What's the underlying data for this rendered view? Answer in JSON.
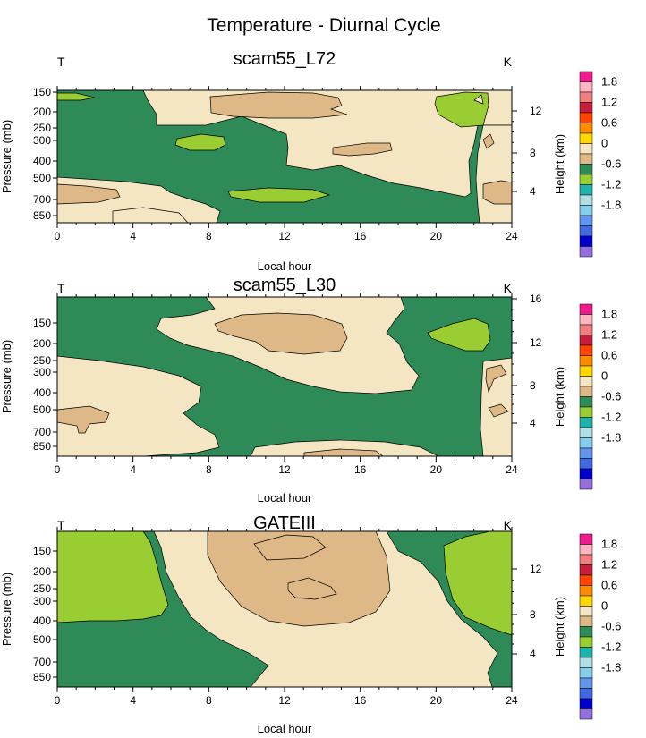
{
  "figure": {
    "title": "Temperature - Diurnal Cycle"
  },
  "colors": {
    "tan": "#deb887",
    "cream": "#f5e6c3",
    "green": "#2e8b57",
    "lightgreen": "#9acd32",
    "contour": "#000000"
  },
  "colorbar": {
    "label": "Height (km)",
    "tick_labels": [
      "1.8",
      "1.2",
      "0.6",
      "0",
      "-0.6",
      "-1.2",
      "-1.8"
    ],
    "swatches": [
      "#ee1c8c",
      "#ffb6c1",
      "#f08080",
      "#c41e3a",
      "#ff4500",
      "#ff8c00",
      "#ffd700",
      "#f5e6c3",
      "#deb887",
      "#2e8b57",
      "#9acd32",
      "#20b2aa",
      "#b0e0e6",
      "#87ceeb",
      "#6495ed",
      "#4169e1",
      "#0000cd",
      "#9370db"
    ]
  },
  "chart_data": [
    {
      "type": "heatmap",
      "title": "scam55_L72",
      "left_label": "T",
      "right_label": "K",
      "xlabel": "Local hour",
      "ylabel": "Pressure (mb)",
      "right_ylabel": "Height (km)",
      "x_ticks": [
        "0",
        "4",
        "8",
        "12",
        "16",
        "20",
        "24"
      ],
      "y_ticks": [
        "150",
        "200",
        "250",
        "300",
        "400",
        "500",
        "700",
        "850"
      ],
      "right_ticks": [
        "12",
        "8",
        "4"
      ],
      "xlim": [
        0,
        24
      ]
    },
    {
      "type": "heatmap",
      "title": "scam55_L30",
      "left_label": "T",
      "right_label": "K",
      "xlabel": "Local hour",
      "ylabel": "Pressure (mb)",
      "right_ylabel": "Height (km)",
      "x_ticks": [
        "0",
        "4",
        "8",
        "12",
        "16",
        "20",
        "24"
      ],
      "y_ticks": [
        "150",
        "200",
        "250",
        "300",
        "400",
        "500",
        "700",
        "850"
      ],
      "right_ticks": [
        "16",
        "12",
        "8",
        "4"
      ],
      "xlim": [
        0,
        24
      ]
    },
    {
      "type": "heatmap",
      "title": "GATEIII",
      "left_label": "T",
      "right_label": "K",
      "xlabel": "Local hour",
      "ylabel": "Pressure (mb)",
      "right_ylabel": "Height (km)",
      "x_ticks": [
        "0",
        "4",
        "8",
        "12",
        "16",
        "20",
        "24"
      ],
      "y_ticks": [
        "150",
        "200",
        "250",
        "300",
        "400",
        "500",
        "700",
        "850"
      ],
      "right_ticks": [
        "12",
        "8",
        "4"
      ],
      "xlim": [
        0,
        24
      ]
    }
  ]
}
